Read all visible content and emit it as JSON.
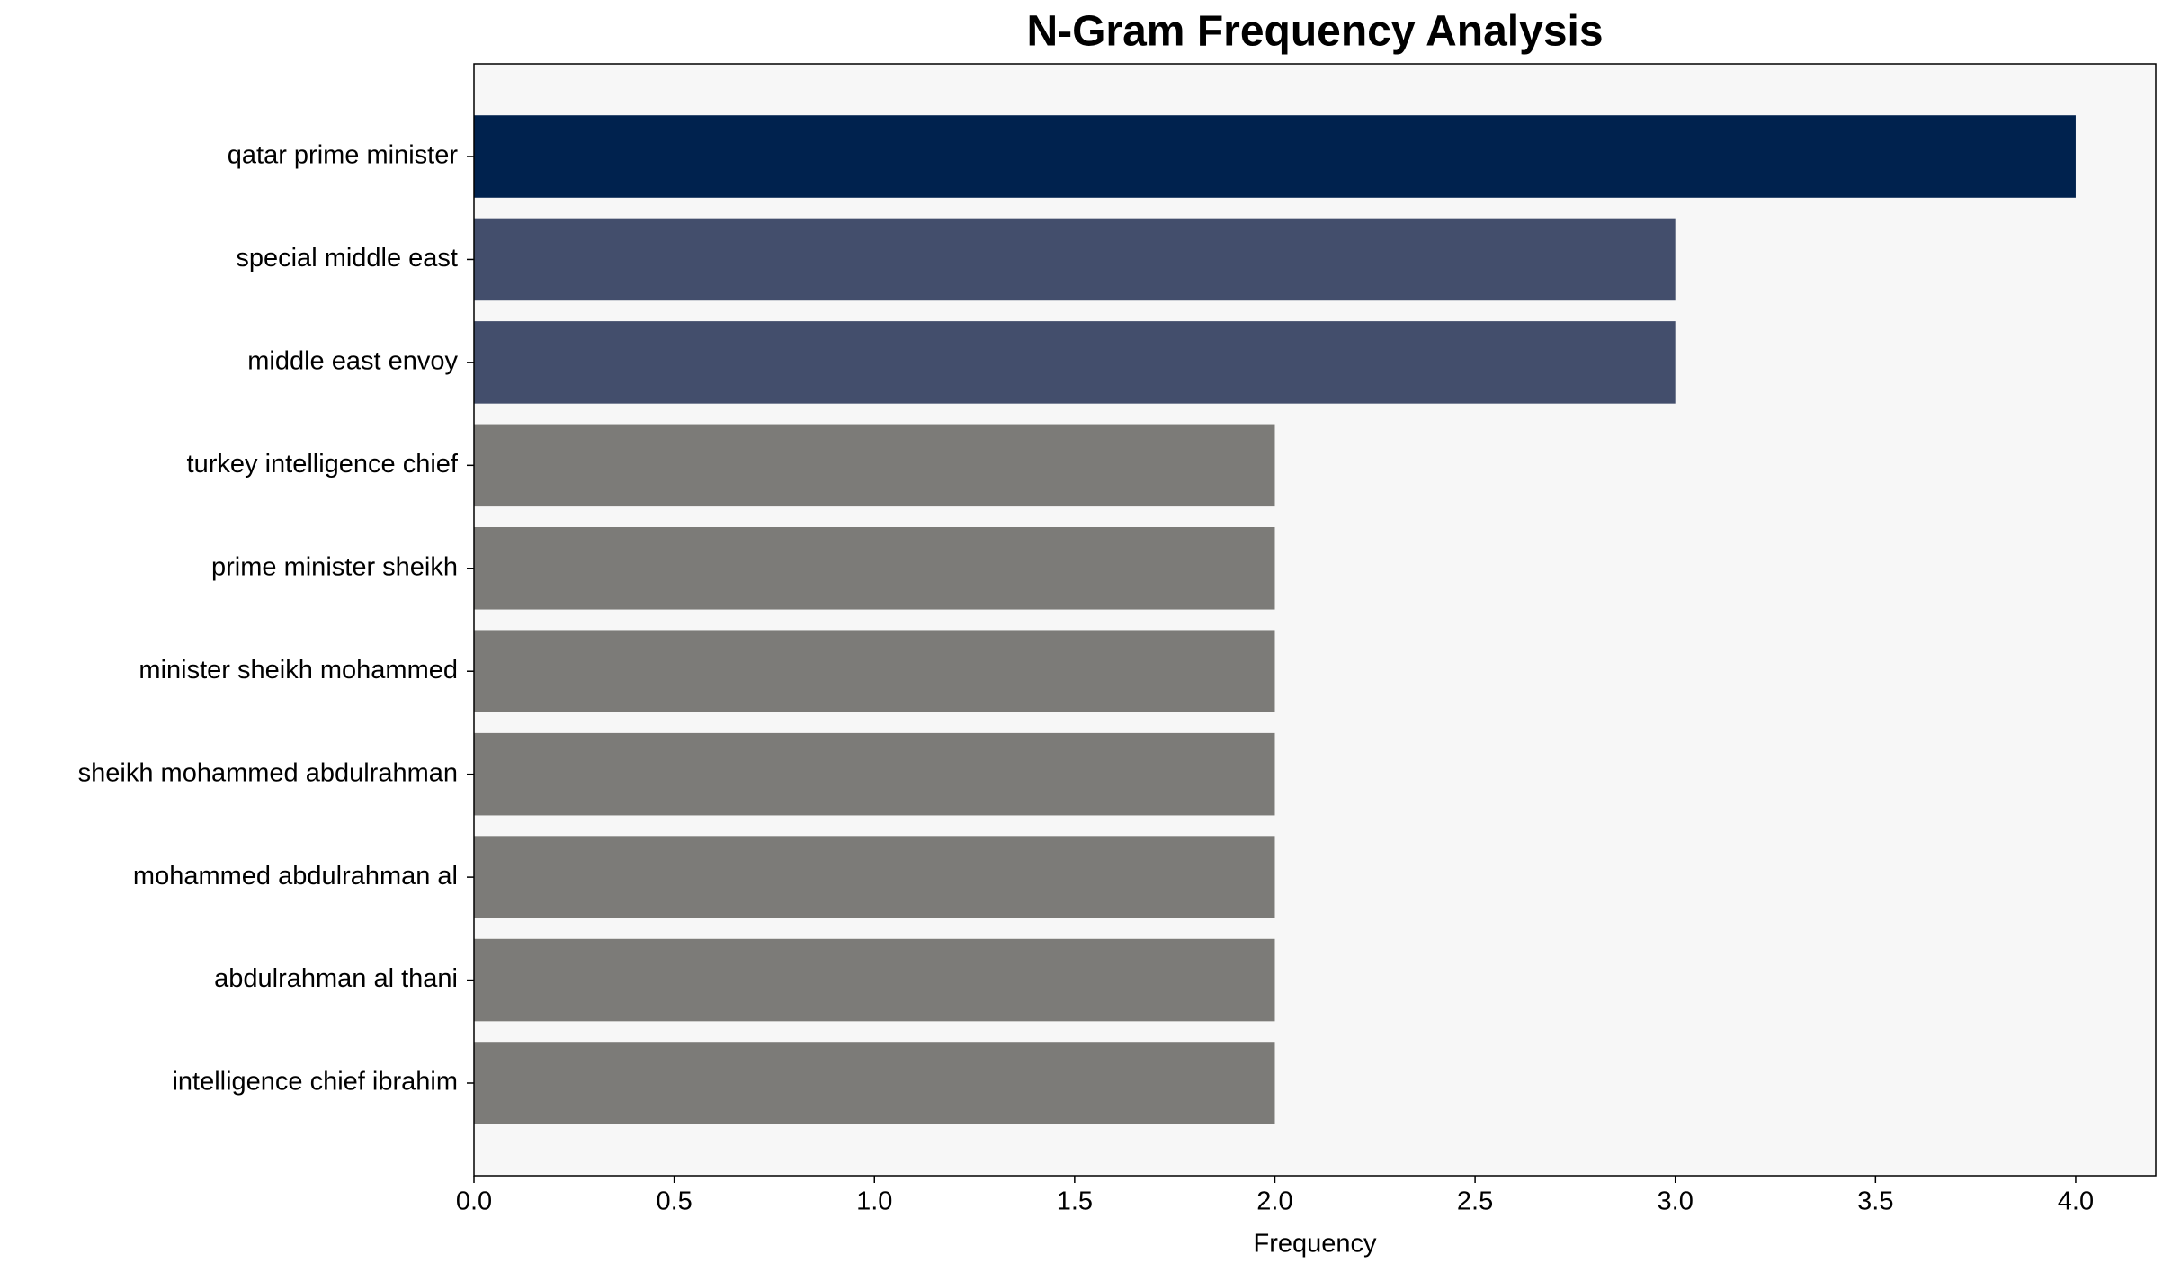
{
  "chart_data": {
    "type": "barh",
    "title": "N-Gram Frequency Analysis",
    "x_label": "Frequency",
    "categories": [
      "qatar prime minister",
      "special middle east",
      "middle east envoy",
      "turkey intelligence chief",
      "prime minister sheikh",
      "minister sheikh mohammed",
      "sheikh mohammed abdulrahman",
      "mohammed abdulrahman al",
      "abdulrahman al thani",
      "intelligence chief ibrahim"
    ],
    "values": [
      4,
      3,
      3,
      2,
      2,
      2,
      2,
      2,
      2,
      2
    ],
    "colors": [
      "#00224e",
      "#434e6c",
      "#434e6c",
      "#7c7b78",
      "#7c7b78",
      "#7c7b78",
      "#7c7b78",
      "#7c7b78",
      "#7c7b78",
      "#7c7b78"
    ],
    "xlim": [
      0,
      4.2
    ],
    "xticks": [
      {
        "value": 0,
        "label": "0.0"
      },
      {
        "value": 0.5,
        "label": "0.5"
      },
      {
        "value": 1,
        "label": "1.0"
      },
      {
        "value": 1.5,
        "label": "1.5"
      },
      {
        "value": 2,
        "label": "2.0"
      },
      {
        "value": 2.5,
        "label": "2.5"
      },
      {
        "value": 3,
        "label": "3.0"
      },
      {
        "value": 3.5,
        "label": "3.5"
      },
      {
        "value": 4,
        "label": "4.0"
      }
    ],
    "grid": false
  }
}
